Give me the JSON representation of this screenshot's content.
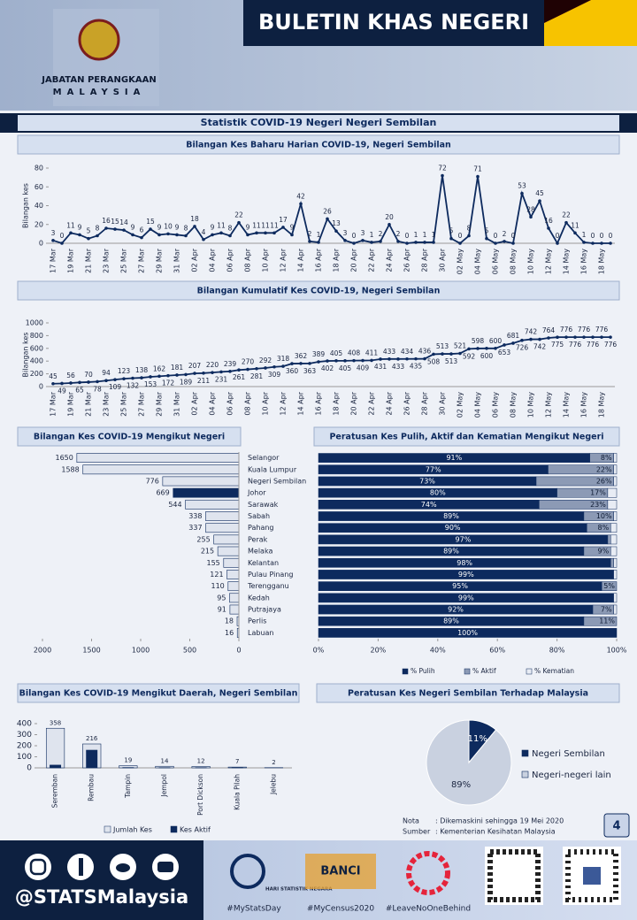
{
  "header": {
    "org1": "JABATAN PERANGKAAN",
    "org2": "MALAYSIA",
    "bulletin": "BULETIN KHAS NEGERI"
  },
  "title": "Statistik COVID-19 Negeri Negeri Sembilan",
  "chart_data": [
    {
      "type": "line",
      "title": "Bilangan Kes Baharu Harian COVID-19, Negeri Sembilan",
      "ylabel": "Bilangan kes",
      "color": "#0d2a5e",
      "grid": false,
      "categories": [
        "17 Mar",
        null,
        "19 Mar",
        null,
        "21 Mar",
        null,
        "23 Mar",
        null,
        "25 Mar",
        null,
        "27 Mar",
        null,
        "29 Mar",
        null,
        "31 Mar",
        null,
        "02 Apr",
        null,
        "04 Apr",
        null,
        "06 Apr",
        null,
        "08 Apr",
        null,
        "10 Apr",
        null,
        "12 Apr",
        null,
        "14 Apr",
        null,
        "16 Apr",
        null,
        "18 Apr",
        null,
        "20 Apr",
        null,
        "22 Apr",
        null,
        "24 Apr",
        null,
        "26 Apr",
        null,
        "28 Apr",
        null,
        "30 Apr",
        null,
        "02 May",
        null,
        "04 May",
        null,
        "06 May",
        null,
        "08 May",
        null,
        "10 May",
        null,
        "12 May",
        null,
        "14 May",
        null,
        "16 May",
        null,
        "18 May",
        null
      ],
      "values": [
        3,
        0,
        11,
        9,
        5,
        8,
        16,
        15,
        14,
        9,
        6,
        15,
        9,
        10,
        9,
        8,
        18,
        4,
        9,
        11,
        8,
        22,
        9,
        11,
        11,
        11,
        17,
        9,
        42,
        2,
        1,
        26,
        13,
        3,
        0,
        3,
        1,
        2,
        20,
        2,
        0,
        1,
        1,
        1,
        72,
        5,
        0,
        8,
        71,
        5,
        0,
        2,
        0,
        53,
        28,
        45,
        16,
        0,
        22,
        11,
        1,
        0,
        0,
        0
      ],
      "ylim": [
        0,
        80
      ],
      "yticks": [
        0,
        20,
        40,
        60,
        80
      ]
    },
    {
      "type": "line",
      "title": "Bilangan Kumulatif Kes COVID-19, Negeri Sembilan",
      "ylabel": "Bilangan kes",
      "color": "#0d2a5e",
      "grid": false,
      "categories": [
        "17 Mar",
        null,
        "19 Mar",
        null,
        "21 Mar",
        null,
        "23 Mar",
        null,
        "25 Mar",
        null,
        "27 Mar",
        null,
        "29 Mar",
        null,
        "31 Mar",
        null,
        "02 Apr",
        null,
        "04 Apr",
        null,
        "06 Apr",
        null,
        "08 Apr",
        null,
        "10 Apr",
        null,
        "12 Apr",
        null,
        "14 Apr",
        null,
        "16 Apr",
        null,
        "18 Apr",
        null,
        "20 Apr",
        null,
        "22 Apr",
        null,
        "24 Apr",
        null,
        "26 Apr",
        null,
        "28 Apr",
        null,
        "30 Apr",
        null,
        "02 May",
        null,
        "04 May",
        null,
        "06 May",
        null,
        "08 May",
        null,
        "10 May",
        null,
        "12 May",
        null,
        "14 May",
        null,
        "16 May",
        null,
        "18 May",
        null
      ],
      "values": [
        45,
        49,
        56,
        65,
        70,
        78,
        94,
        109,
        123,
        132,
        138,
        153,
        162,
        172,
        181,
        189,
        207,
        211,
        220,
        231,
        239,
        261,
        270,
        281,
        292,
        309,
        318,
        360,
        362,
        363,
        389,
        402,
        405,
        405,
        408,
        409,
        411,
        431,
        433,
        433,
        434,
        435,
        436,
        508,
        513,
        513,
        521,
        592,
        598,
        600,
        600,
        653,
        681,
        726,
        742,
        742,
        764,
        775,
        776,
        776,
        776,
        776,
        776,
        776
      ],
      "ylim": [
        0,
        1000
      ],
      "yticks": [
        0,
        200,
        400,
        600,
        800,
        1000
      ]
    },
    {
      "type": "hbar",
      "title": "Bilangan Kes COVID-19 Mengikut Negeri",
      "categories": [
        "Selangor",
        "Kuala Lumpur",
        "Negeri Sembilan",
        "Johor",
        "Sarawak",
        "Sabah",
        "Pahang",
        "Perak",
        "Melaka",
        "Kelantan",
        "Pulau Pinang",
        "Terengganu",
        "Kedah",
        "Putrajaya",
        "Perlis",
        "Labuan"
      ],
      "values": [
        1650,
        1588,
        776,
        669,
        544,
        338,
        337,
        255,
        215,
        155,
        121,
        110,
        95,
        91,
        18,
        16
      ],
      "colors": [
        "#dfe4ee",
        "#dfe4ee",
        "#dfe4ee",
        "#0d2a5e",
        "#dfe4ee",
        "#dfe4ee",
        "#dfe4ee",
        "#dfe4ee",
        "#dfe4ee",
        "#dfe4ee",
        "#dfe4ee",
        "#dfe4ee",
        "#dfe4ee",
        "#dfe4ee",
        "#dfe4ee",
        "#dfe4ee"
      ],
      "xlim": [
        2000,
        0
      ],
      "xticks": [
        2000,
        1500,
        1000,
        500,
        0
      ]
    },
    {
      "type": "stacked_hbar",
      "title": "Peratusan Kes Pulih, Aktif dan Kematian Mengikut Negeri",
      "categories": [
        "Selangor",
        "Kuala Lumpur",
        "Negeri Sembilan",
        "Johor",
        "Sarawak",
        "Sabah",
        "Pahang",
        "Perak",
        "Melaka",
        "Kelantan",
        "Pulau Pinang",
        "Terengganu",
        "Kedah",
        "Putrajaya",
        "Perlis",
        "Labuan"
      ],
      "series": [
        {
          "name": "% Pulih",
          "color": "#0d2a5e",
          "values": [
            91,
            77,
            73,
            80,
            74,
            89,
            90,
            97,
            89,
            98,
            99,
            95,
            99,
            92,
            89,
            100
          ],
          "value_labels": [
            "91%",
            "77%",
            "73%",
            "80%",
            "74%",
            "89%",
            "90%",
            "97%",
            "89%",
            "98%",
            "99%",
            "95%",
            "99%",
            "92%",
            "89%",
            "100%"
          ]
        },
        {
          "name": "% Aktif",
          "color": "#8c9ab5",
          "values": [
            8,
            22,
            26,
            17,
            23,
            10,
            8,
            1,
            9,
            1,
            0,
            5,
            0,
            7,
            11,
            0
          ],
          "value_labels": [
            "8%",
            "22%",
            "26%",
            "17%",
            "23%",
            "10%",
            "8%",
            null,
            "9%",
            null,
            null,
            "5%",
            null,
            "7%",
            "11%",
            null
          ]
        },
        {
          "name": "% Kematian",
          "color": "#e8ecf4",
          "values": [
            1,
            1,
            1,
            3,
            3,
            1,
            2,
            2,
            2,
            1,
            1,
            0,
            1,
            1,
            0,
            0
          ]
        }
      ],
      "xlim": [
        0,
        100
      ],
      "xticks": [
        {
          "value": 0,
          "label": "0%"
        },
        {
          "value": 20,
          "label": "20%"
        },
        {
          "value": 40,
          "label": "40%"
        },
        {
          "value": 60,
          "label": "60%"
        },
        {
          "value": 80,
          "label": "80%"
        },
        {
          "value": 100,
          "label": "100%"
        }
      ]
    },
    {
      "type": "bar",
      "title": "Bilangan Kes COVID-19 Mengikut Daerah, Negeri Sembilan",
      "categories": [
        "Seremban",
        "Rembau",
        "Tampin",
        "Jempol",
        "Port Dickson",
        "Kuala Pilah",
        "Jelebu"
      ],
      "series": [
        {
          "name": "Jumlah Kes",
          "color": "#dfe4ee",
          "values": [
            358,
            216,
            19,
            14,
            12,
            7,
            2
          ],
          "show_labels": true
        },
        {
          "name": "Kes Aktif",
          "color": "#0d2a5e",
          "values": [
            25,
            160,
            3,
            2,
            2,
            1,
            0
          ]
        }
      ],
      "ylim": [
        0,
        400
      ],
      "yticks": [
        0,
        100,
        200,
        300,
        400
      ]
    },
    {
      "type": "pie",
      "title": "Peratusan Kes Negeri Sembilan Terhadap Malaysia",
      "categories": [
        "Negeri Sembilan",
        "Negeri-negeri lain"
      ],
      "values": [
        11,
        89
      ],
      "value_labels": [
        "11%",
        "89%"
      ],
      "colors": [
        "#0d2a5e",
        "#c9d1e0"
      ]
    }
  ],
  "note": {
    "label1": "Nota",
    "text1": ": Dikemaskini sehingga 19 Mei 2020",
    "label2": "Sumber",
    "text2": ": Kementerian Kesihatan Malaysia"
  },
  "page": "4",
  "footer": {
    "handle": "@STATSMalaysia",
    "tag1": "#MyStatsDay",
    "tag2": "#MyCensus2020",
    "tag3": "#LeaveNoOneBehind",
    "logo1": "HARI STATISTIK NEGARA",
    "logo2": "BANCI"
  }
}
